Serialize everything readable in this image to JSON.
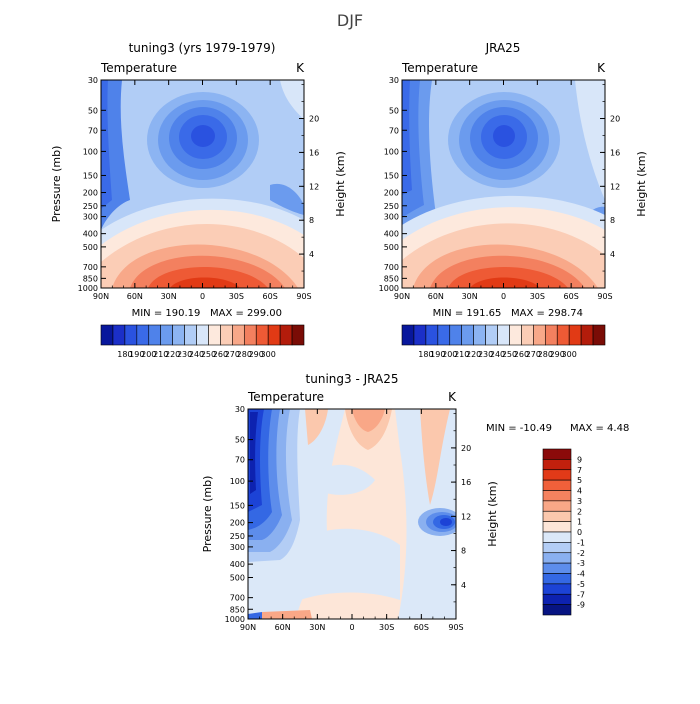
{
  "suptitle": "DJF",
  "chart_data": [
    {
      "type": "heatmap",
      "title": "tuning3 (yrs 1979-1979)",
      "left_label": "Temperature",
      "right_label": "K",
      "ylabel": "Pressure (mb)",
      "y2label": "Height (km)",
      "x_ticks": [
        "90N",
        "60N",
        "30N",
        "0",
        "30S",
        "60S",
        "90S"
      ],
      "y_ticks": [
        "30",
        "50",
        "70",
        "100",
        "150",
        "200",
        "250",
        "300",
        "400",
        "500",
        "700",
        "850",
        "1000"
      ],
      "y2_ticks": [
        "20",
        "16",
        "12",
        "8",
        "4"
      ],
      "min_label": "MIN = 190.19",
      "max_label": "MAX = 299.00",
      "min": 190.19,
      "max": 299.0,
      "colorbar": {
        "orientation": "horizontal",
        "labels": [
          "180",
          "190",
          "200",
          "210",
          "220",
          "230",
          "240",
          "250",
          "260",
          "270",
          "280",
          "290",
          "300"
        ],
        "colors": [
          "#08179c",
          "#1b2fc8",
          "#2a52e0",
          "#3a6ae8",
          "#4f82ea",
          "#6b9bee",
          "#8cb4f2",
          "#b1cdf6",
          "#d8e6f9",
          "#fde9dd",
          "#fbcdb6",
          "#f8a889",
          "#f3805f",
          "#ee5a35",
          "#e13a15",
          "#b31c0b",
          "#7a0c06"
        ]
      }
    },
    {
      "type": "heatmap",
      "title": "JRA25",
      "left_label": "Temperature",
      "right_label": "K",
      "ylabel": "",
      "y2label": "Height (km)",
      "x_ticks": [
        "90N",
        "60N",
        "30N",
        "0",
        "30S",
        "60S",
        "90S"
      ],
      "y_ticks": [
        "30",
        "50",
        "70",
        "100",
        "150",
        "200",
        "250",
        "300",
        "400",
        "500",
        "700",
        "850",
        "1000"
      ],
      "y2_ticks": [
        "20",
        "16",
        "12",
        "8",
        "4"
      ],
      "min_label": "MIN = 191.65",
      "max_label": "MAX = 298.74",
      "min": 191.65,
      "max": 298.74,
      "colorbar": {
        "orientation": "horizontal",
        "labels": [
          "180",
          "190",
          "200",
          "210",
          "220",
          "230",
          "240",
          "250",
          "260",
          "270",
          "280",
          "290",
          "300"
        ],
        "colors": [
          "#08179c",
          "#1b2fc8",
          "#2a52e0",
          "#3a6ae8",
          "#4f82ea",
          "#6b9bee",
          "#8cb4f2",
          "#b1cdf6",
          "#d8e6f9",
          "#fde9dd",
          "#fbcdb6",
          "#f8a889",
          "#f3805f",
          "#ee5a35",
          "#e13a15",
          "#b31c0b",
          "#7a0c06"
        ]
      }
    },
    {
      "type": "heatmap",
      "title": "tuning3 - JRA25",
      "left_label": "Temperature",
      "right_label": "K",
      "ylabel": "Pressure (mb)",
      "y2label": "Height (km)",
      "x_ticks": [
        "90N",
        "60N",
        "30N",
        "0",
        "30S",
        "60S",
        "90S"
      ],
      "y_ticks": [
        "30",
        "50",
        "70",
        "100",
        "150",
        "200",
        "250",
        "300",
        "400",
        "500",
        "700",
        "850",
        "1000"
      ],
      "y2_ticks": [
        "20",
        "16",
        "12",
        "8",
        "4"
      ],
      "min_label": "MIN = -10.49",
      "max_label": "MAX =   4.48",
      "min": -10.49,
      "max": 4.48,
      "colorbar": {
        "orientation": "vertical",
        "labels": [
          "9",
          "7",
          "5",
          "4",
          "3",
          "2",
          "1",
          "0",
          "-1",
          "-2",
          "-3",
          "-4",
          "-5",
          "-7",
          "-9"
        ],
        "colors": [
          "#8b0a0a",
          "#c2200d",
          "#e23a18",
          "#f0603a",
          "#f5825f",
          "#f9a787",
          "#fbc8ad",
          "#fde6d8",
          "#dbe8f8",
          "#b3cdf5",
          "#8ab0f0",
          "#5d8deb",
          "#3468e4",
          "#1c43d6",
          "#0d22b0",
          "#071482"
        ]
      }
    }
  ]
}
